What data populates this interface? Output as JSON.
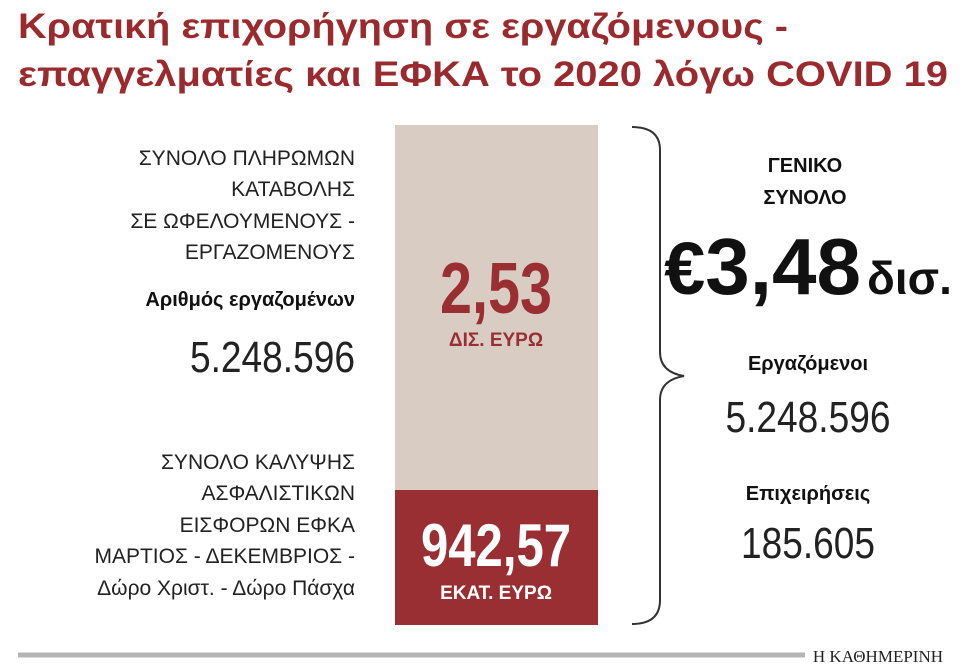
{
  "title": [
    "Κρατική επιχορήγηση σε εργαζόμενους -",
    "επαγγελματίες και ΕΦΚΑ το 2020 λόγω COVID 19"
  ],
  "left": {
    "payments_label": [
      "ΣΥΝΟΛΟ ΠΛΗΡΩΜΩΝ",
      "ΚΑΤΑΒΟΛΗΣ",
      "ΣΕ ΩΦΕΛΟΥΜΕΝΟΥΣ -",
      "ΕΡΓΑΖΟΜΕΝΟΥΣ"
    ],
    "employees_label": "Αριθμός εργαζομένων",
    "employees": "5.248.596",
    "coverage_label": [
      "ΣΥΝΟΛΟ ΚΑΛΥΨΗΣ",
      "ΑΣΦΑΛΙΣΤΙΚΩΝ",
      "ΕΙΣΦΟΡΩΝ ΕΦΚΑ",
      "ΜΑΡΤΙΟΣ - ΔΕΚΕΜΒΡΙΟΣ -",
      "Δώρο Χριστ. - Δώρο Πάσχα"
    ]
  },
  "bar": {
    "top": {
      "amount": "2,53",
      "unit": "ΔΙΣ. ΕΥΡΩ"
    },
    "bottom": {
      "amount": "942,57",
      "unit": "ΕΚΑΤ. ΕΥΡΩ"
    }
  },
  "right": {
    "total_label": [
      "ΓΕΝΙΚΟ",
      "ΣΥΝΟΛΟ"
    ],
    "total_currency": "€",
    "total": "3,48",
    "total_unit": "δισ.",
    "employees_label": "Εργαζόμενοι",
    "employees": "5.248.596",
    "businesses_label": "Επιχειρήσεις",
    "businesses": "185.605"
  },
  "footer": "Η ΚΑΘΗΜΕΡΙΝΗ"
}
